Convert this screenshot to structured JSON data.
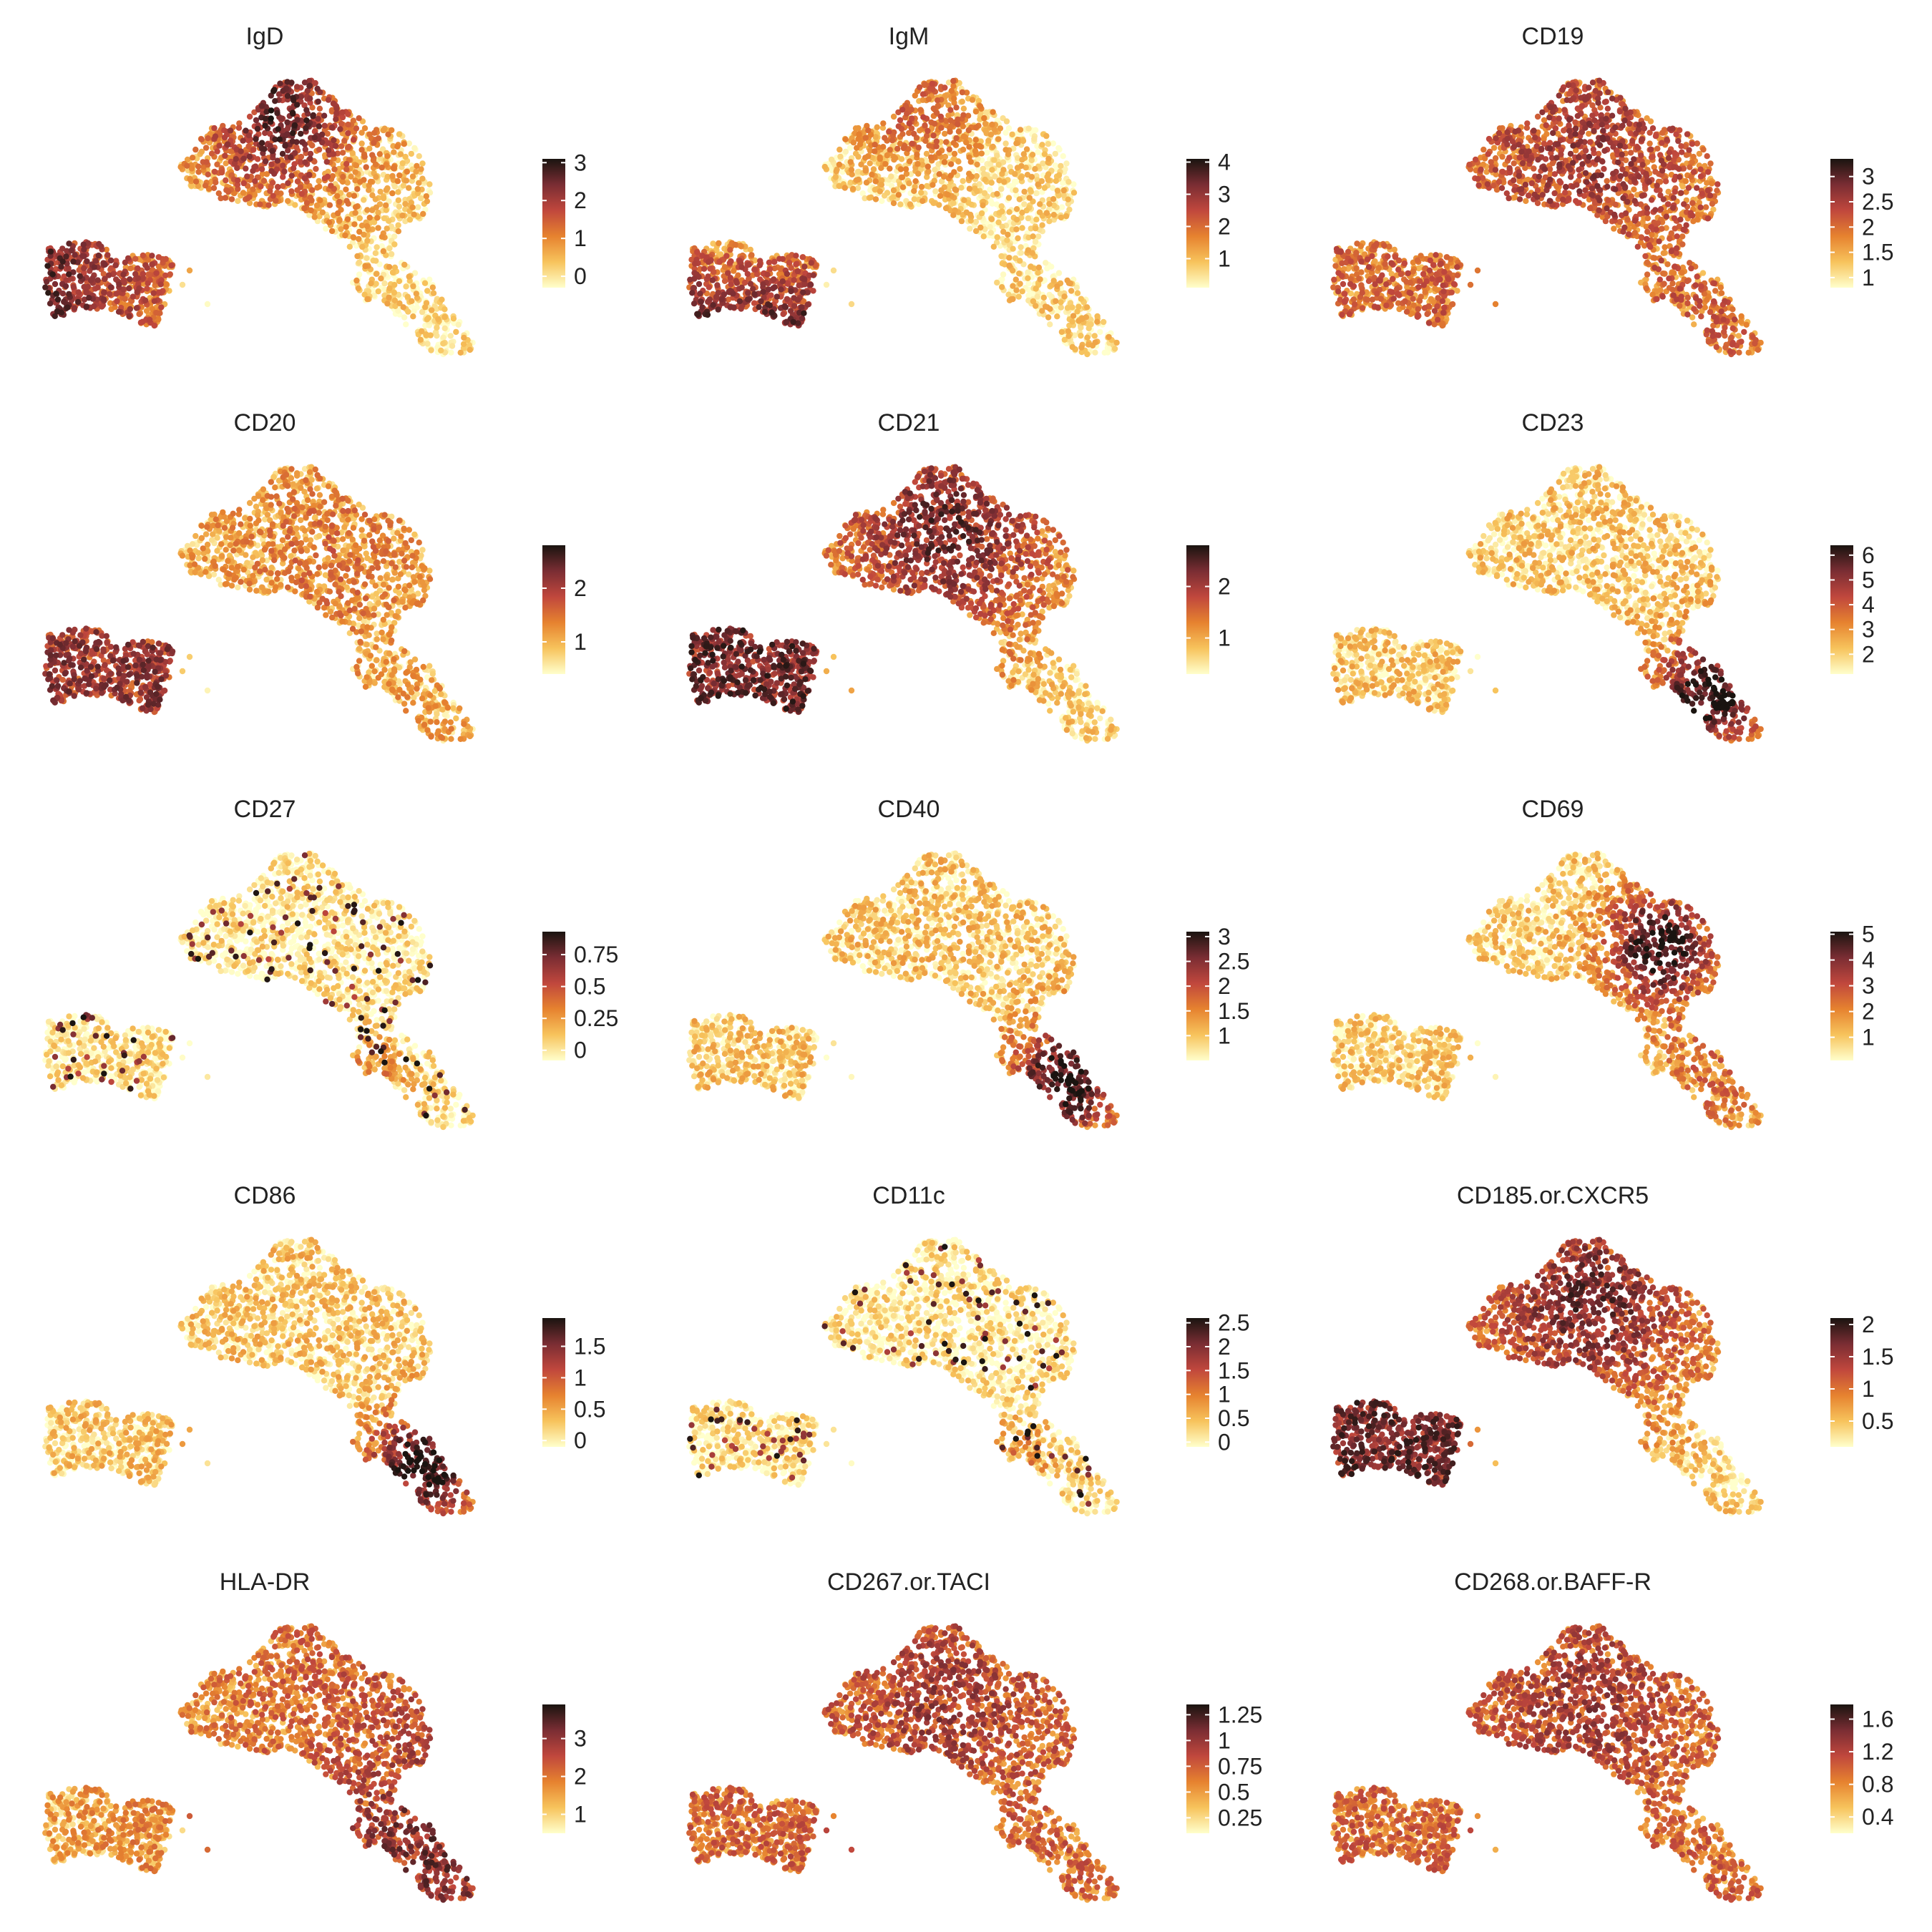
{
  "colors": {
    "low": "#FFFFCC",
    "mid1": "#F7C35C",
    "mid2": "#E6822F",
    "mid3": "#C0473D",
    "mid4": "#7A2D33",
    "high": "#1A1410"
  },
  "chart_data": [
    {
      "type": "scatter",
      "title": "IgD",
      "color_ticks": [
        "0",
        "1",
        "2",
        "3"
      ],
      "color_range": [
        -0.3,
        3.1
      ],
      "high_region": "left-cluster-and-top",
      "point_colormap": "heat"
    },
    {
      "type": "scatter",
      "title": "IgM",
      "color_ticks": [
        "1",
        "2",
        "3",
        "4"
      ],
      "color_range": [
        0.1,
        4.1
      ],
      "high_region": "left-cluster-bottom",
      "point_colormap": "heat"
    },
    {
      "type": "scatter",
      "title": "CD19",
      "color_ticks": [
        "1",
        "1.5",
        "2",
        "2.5",
        "3"
      ],
      "color_range": [
        0.8,
        3.35
      ],
      "high_region": "uniform-medium",
      "point_colormap": "heat"
    },
    {
      "type": "scatter",
      "title": "CD20",
      "color_ticks": [
        "1",
        "2"
      ],
      "color_range": [
        0.4,
        2.8
      ],
      "high_region": "left-cluster",
      "point_colormap": "heat"
    },
    {
      "type": "scatter",
      "title": "CD21",
      "color_ticks": [
        "1",
        "2"
      ],
      "color_range": [
        0.3,
        2.8
      ],
      "high_region": "left-and-top",
      "point_colormap": "heat"
    },
    {
      "type": "scatter",
      "title": "CD23",
      "color_ticks": [
        "2",
        "3",
        "4",
        "5",
        "6"
      ],
      "color_range": [
        1.2,
        6.4
      ],
      "high_region": "bottom-right",
      "point_colormap": "heat"
    },
    {
      "type": "scatter",
      "title": "CD27",
      "color_ticks": [
        "0",
        "0.25",
        "0.5",
        "0.75"
      ],
      "color_range": [
        -0.08,
        0.93
      ],
      "high_region": "sparse-spots",
      "point_colormap": "heat"
    },
    {
      "type": "scatter",
      "title": "CD40",
      "color_ticks": [
        "1",
        "1.5",
        "2",
        "2.5",
        "3"
      ],
      "color_range": [
        0.5,
        3.1
      ],
      "high_region": "bottom-right",
      "point_colormap": "heat"
    },
    {
      "type": "scatter",
      "title": "CD69",
      "color_ticks": [
        "1",
        "2",
        "3",
        "4",
        "5"
      ],
      "color_range": [
        0.1,
        5.1
      ],
      "high_region": "center",
      "point_colormap": "heat"
    },
    {
      "type": "scatter",
      "title": "CD86",
      "color_ticks": [
        "0",
        "0.5",
        "1",
        "1.5"
      ],
      "color_range": [
        -0.1,
        1.95
      ],
      "high_region": "bottom-right",
      "point_colormap": "heat"
    },
    {
      "type": "scatter",
      "title": "CD11c",
      "color_ticks": [
        "0",
        "0.5",
        "1",
        "1.5",
        "2",
        "2.5"
      ],
      "color_range": [
        -0.1,
        2.6
      ],
      "high_region": "sparse-spots",
      "point_colormap": "heat"
    },
    {
      "type": "scatter",
      "title": "CD185.or.CXCR5",
      "color_ticks": [
        "0.5",
        "1",
        "1.5",
        "2"
      ],
      "color_range": [
        0.1,
        2.1
      ],
      "high_region": "left-and-top",
      "point_colormap": "heat"
    },
    {
      "type": "scatter",
      "title": "HLA-DR",
      "color_ticks": [
        "1",
        "2",
        "3"
      ],
      "color_range": [
        0.5,
        3.9
      ],
      "high_region": "right-arm",
      "point_colormap": "heat"
    },
    {
      "type": "scatter",
      "title": "CD267.or.TACI",
      "color_ticks": [
        "0.25",
        "0.5",
        "0.75",
        "1",
        "1.25"
      ],
      "color_range": [
        0.1,
        1.35
      ],
      "high_region": "uniform-medium",
      "point_colormap": "heat"
    },
    {
      "type": "scatter",
      "title": "CD268.or.BAFF-R",
      "color_ticks": [
        "0.4",
        "0.8",
        "1.2",
        "1.6"
      ],
      "color_range": [
        0.2,
        1.78
      ],
      "high_region": "uniform-medium",
      "point_colormap": "heat"
    }
  ]
}
